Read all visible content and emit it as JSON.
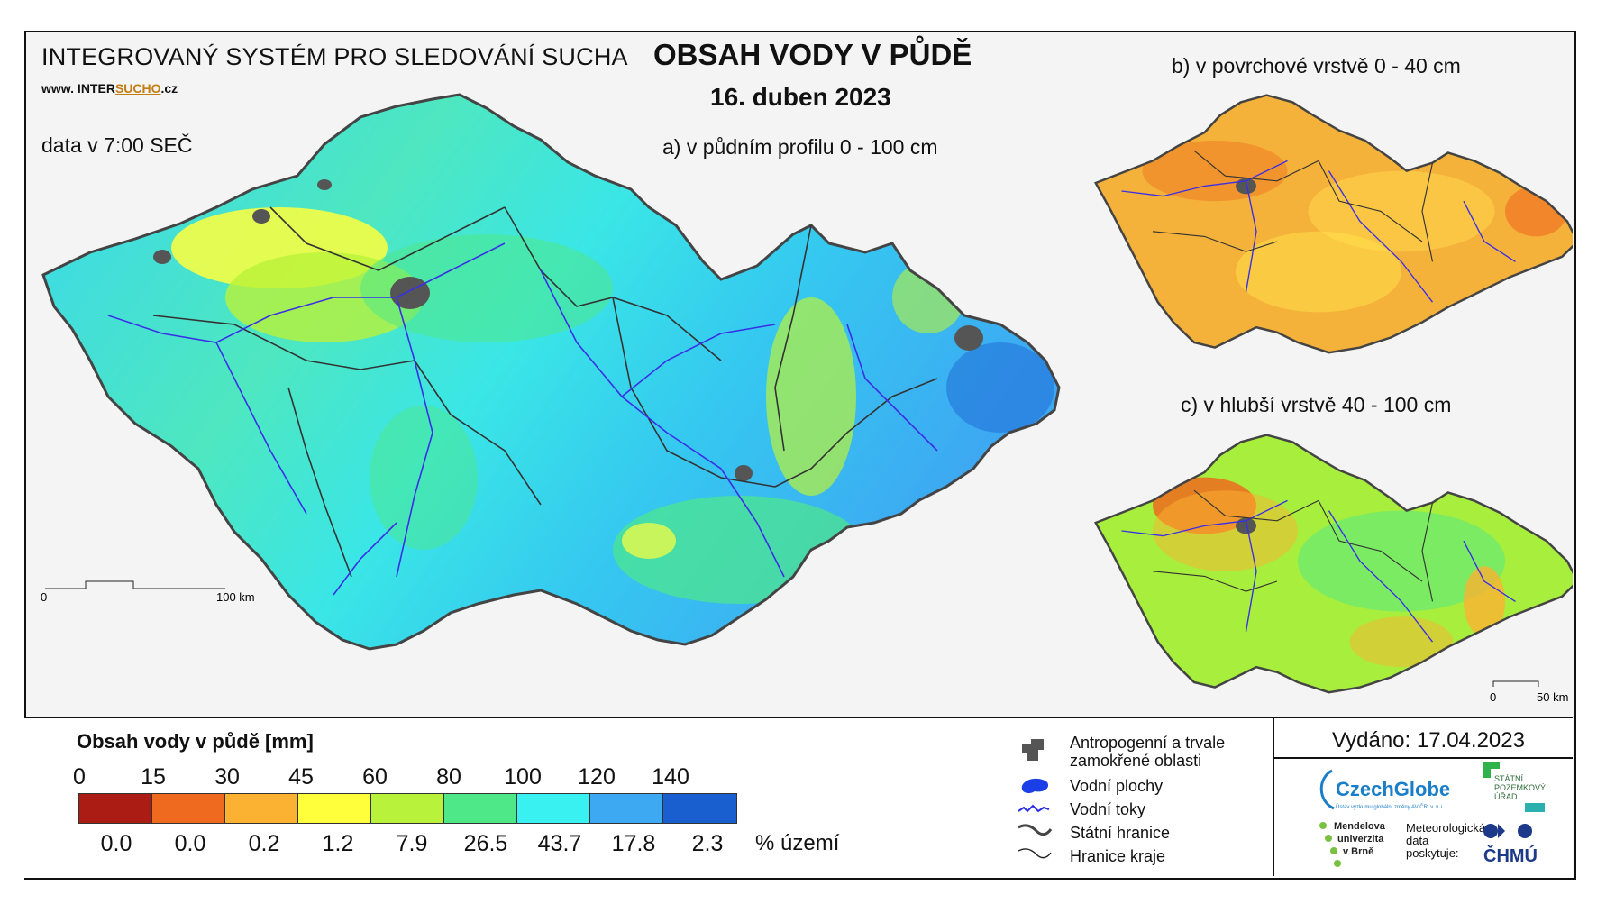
{
  "header": {
    "system_title": "INTEGROVANÝ SYSTÉM PRO SLEDOVÁNÍ SUCHA",
    "url_prefix": "www. INTER",
    "url_highlight": "SUCHO",
    "url_suffix": ".cz",
    "data_time": "data v 7:00 SEČ",
    "title": "OBSAH VODY V PŮDĚ",
    "date": "16. duben 2023"
  },
  "maps": {
    "a_label": "a) v půdním profilu 0 - 100 cm",
    "b_label": "b) v povrchové vrstvě 0 - 40 cm",
    "c_label": "c) v hlubší vrstvě 40 - 100 cm",
    "a_scale": {
      "start": "0",
      "end": "100 km"
    },
    "c_scale": {
      "start": "0",
      "end": "50 km"
    }
  },
  "legend": {
    "title": "Obsah vody v půdě  [mm]",
    "ticks": [
      "0",
      "15",
      "30",
      "45",
      "60",
      "80",
      "100",
      "120",
      "140"
    ],
    "colors": [
      "#aa1c14",
      "#ef6a1f",
      "#fbb232",
      "#ffff3c",
      "#b9f23a",
      "#4ee889",
      "#3af1f1",
      "#3da9f2",
      "#1a5fd0"
    ],
    "area_percent": [
      "0.0",
      "0.0",
      "0.2",
      "1.2",
      "7.9",
      "26.5",
      "43.7",
      "17.8",
      "2.3"
    ],
    "area_label": "% území"
  },
  "map_key": {
    "anthropogenic_1": "Antropogenní a trvale",
    "anthropogenic_2": "zamokřené oblasti",
    "water_bodies": "Vodní plochy",
    "rivers": "Vodní toky",
    "state_border": "Státní hranice",
    "region_border": "Hranice kraje"
  },
  "issued": "Vydáno: 17.04.2023",
  "logos": {
    "czechglobe": "CzechGlobe",
    "czechglobe_sub": "Ústav výzkumu globální změny AV ČR, v. v. i.",
    "spu_1": "STÁTNÍ",
    "spu_2": "POZEMKOVÝ",
    "spu_3": "ÚŘAD",
    "mendel_1": "Mendelova",
    "mendel_2": "univerzita",
    "mendel_3": "v Brně",
    "met_1": "Meteorologická",
    "met_2": "data",
    "met_3": "poskytuje:",
    "chmu": "ČHMÚ"
  }
}
